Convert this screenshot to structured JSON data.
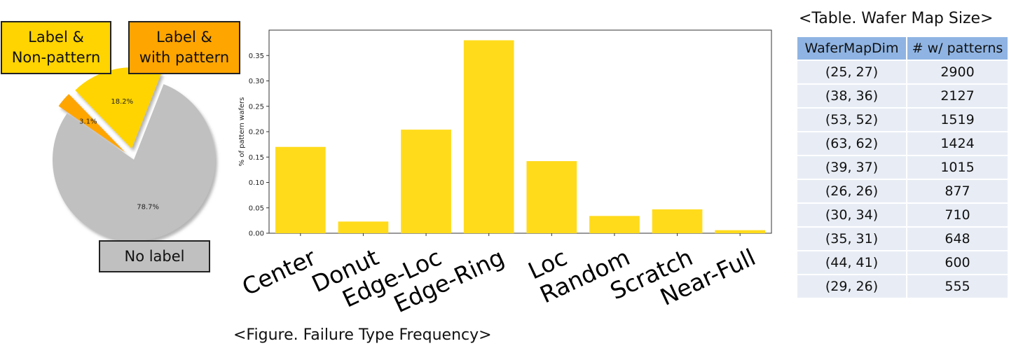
{
  "pie": {
    "slices": [
      {
        "name": "Label & Non-pattern",
        "value": 18.2,
        "label": "18.2%",
        "color": "#ffd400",
        "exploded": true
      },
      {
        "name": "Label & with pattern",
        "value": 3.1,
        "label": "3.1%",
        "color": "#ffa500",
        "exploded": true
      },
      {
        "name": "No label",
        "value": 78.7,
        "label": "78.7%",
        "color": "#c0c0c0",
        "exploded": false
      }
    ],
    "callouts": {
      "nonpattern": "Label &\nNon-pattern",
      "pattern": "Label &\nwith pattern",
      "nolabel": "No label"
    }
  },
  "chart_data": [
    {
      "type": "pie",
      "categories": [
        "Label & Non-pattern",
        "Label & with pattern",
        "No label"
      ],
      "values": [
        18.2,
        3.1,
        78.7
      ],
      "labels": [
        "18.2%",
        "3.1%",
        "78.7%"
      ]
    },
    {
      "type": "bar",
      "categories": [
        "Center",
        "Donut",
        "Edge-Loc",
        "Edge-Ring",
        "Loc",
        "Random",
        "Scratch",
        "Near-Full"
      ],
      "values": [
        0.17,
        0.023,
        0.204,
        0.38,
        0.142,
        0.034,
        0.047,
        0.006
      ],
      "ylabel": "% of pattern wafers",
      "ylim": [
        0,
        0.4
      ],
      "yticks": [
        "0.00",
        "0.05",
        "0.10",
        "0.15",
        "0.20",
        "0.25",
        "0.30",
        "0.35"
      ],
      "bar_color": "#ffdb1c",
      "grid": false,
      "legend": "none"
    }
  ],
  "captions": {
    "figure": "<Figure. Failure Type Frequency>",
    "table": "<Table. Wafer Map Size>"
  },
  "table": {
    "headers": [
      "WaferMapDim",
      "# w/ patterns"
    ],
    "rows": [
      [
        "(25, 27)",
        "2900"
      ],
      [
        "(38, 36)",
        "2127"
      ],
      [
        "(53, 52)",
        "1519"
      ],
      [
        "(63, 62)",
        "1424"
      ],
      [
        "(39, 37)",
        "1015"
      ],
      [
        "(26, 26)",
        "877"
      ],
      [
        "(30, 34)",
        "710"
      ],
      [
        "(35, 31)",
        "648"
      ],
      [
        "(44, 41)",
        "600"
      ],
      [
        "(29, 26)",
        "555"
      ]
    ]
  }
}
